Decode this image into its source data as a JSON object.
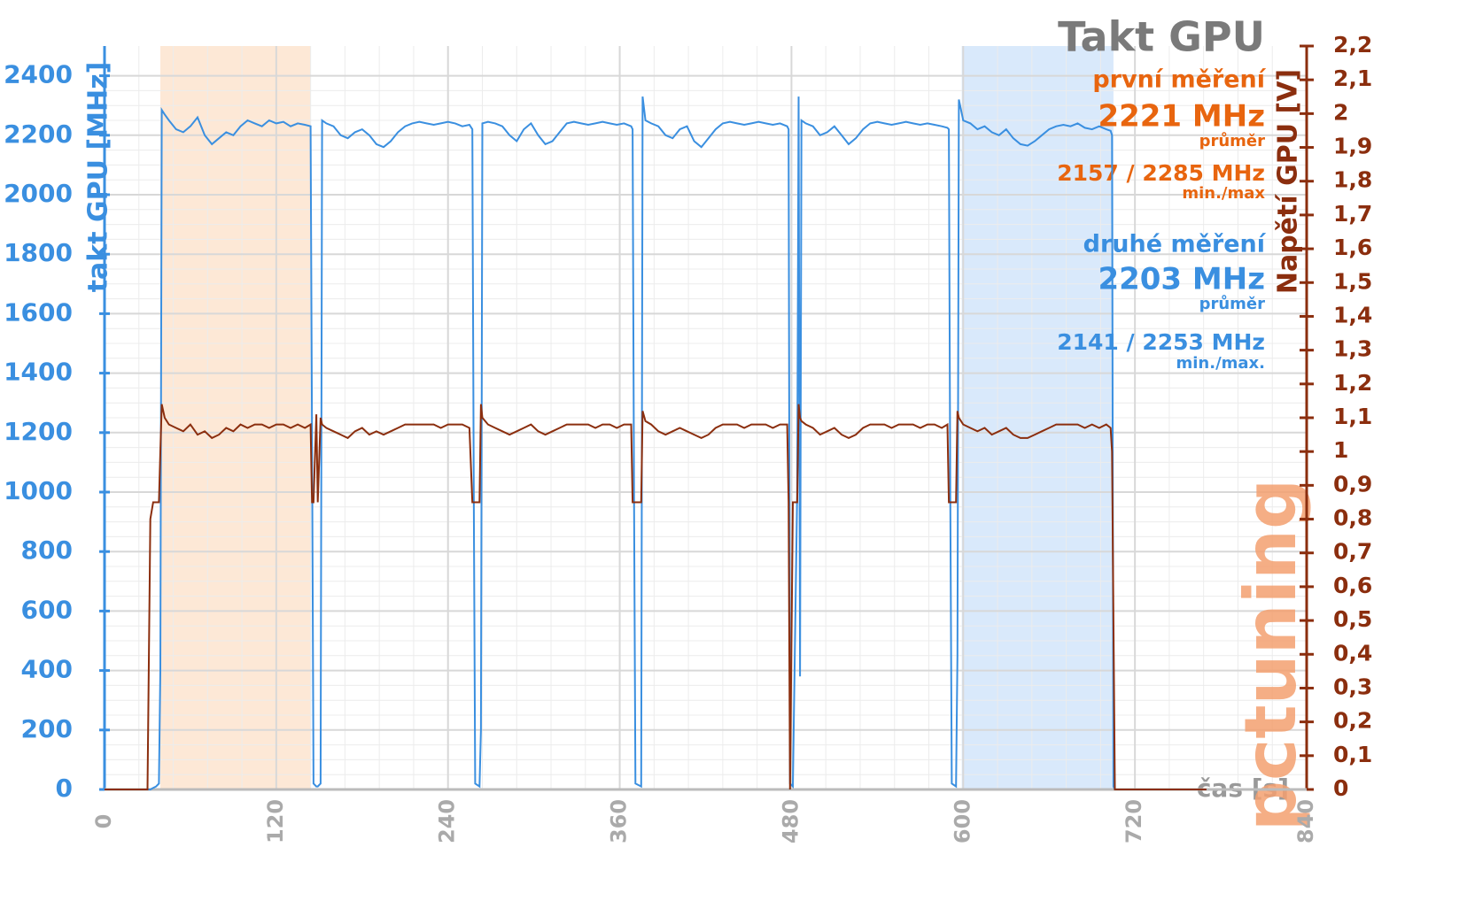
{
  "chart_data": {
    "type": "line",
    "title": "Takt GPU",
    "annotations": [
      "první měření",
      "2221 MHz",
      "průměr",
      "2157 / 2285 MHz",
      "min./max",
      "druhé měření",
      "2203 MHz",
      "průměr",
      "2141 / 2253 MHz",
      "min./max."
    ],
    "x_label": "čas [s]",
    "y_label": "takt GPU [MHz]",
    "y2_label": "Napětí GPU [V]",
    "logo": "pctuning",
    "xlim": [
      0,
      840
    ],
    "xticks": [
      0,
      120,
      240,
      360,
      480,
      600,
      720,
      840
    ],
    "ylim": [
      0,
      2500
    ],
    "yticks": [
      0,
      200,
      400,
      600,
      800,
      1000,
      1200,
      1400,
      1600,
      1800,
      2000,
      2200,
      2400
    ],
    "y2lim": [
      0,
      2.2
    ],
    "y2ticks": [
      0,
      {
        "value": 0.1,
        "label": "0,1"
      },
      {
        "value": 0.2,
        "label": "0,2"
      },
      {
        "value": 0.3,
        "label": "0,3"
      },
      {
        "value": 0.4,
        "label": "0,4"
      },
      {
        "value": 0.5,
        "label": "0,5"
      },
      {
        "value": 0.6,
        "label": "0,6"
      },
      {
        "value": 0.7,
        "label": "0,7"
      },
      {
        "value": 0.8,
        "label": "0,8"
      },
      {
        "value": 0.9,
        "label": "0,9"
      },
      1,
      {
        "value": 1.1,
        "label": "1,1"
      },
      {
        "value": 1.2,
        "label": "1,2"
      },
      {
        "value": 1.3,
        "label": "1,3"
      },
      {
        "value": 1.4,
        "label": "1,4"
      },
      {
        "value": 1.5,
        "label": "1,5"
      },
      {
        "value": 1.6,
        "label": "1,6"
      },
      {
        "value": 1.7,
        "label": "1,7"
      },
      {
        "value": 1.8,
        "label": "1,8"
      },
      {
        "value": 1.9,
        "label": "1,9"
      },
      2,
      {
        "value": 2.1,
        "label": "2,1"
      },
      {
        "value": 2.2,
        "label": "2,2"
      }
    ],
    "grid": true,
    "shaded_regions": [
      {
        "xlim": [
          39,
          144
        ],
        "color": "#fde8d6"
      },
      {
        "xlim": [
          599,
          705
        ],
        "color": "#d9e9fb"
      }
    ],
    "x": [
      0,
      30,
      32,
      34,
      36,
      38,
      39,
      40,
      42,
      45,
      50,
      55,
      60,
      65,
      70,
      75,
      80,
      85,
      90,
      95,
      100,
      105,
      110,
      115,
      120,
      125,
      130,
      135,
      140,
      144,
      145,
      146,
      148,
      149,
      151,
      152,
      155,
      160,
      165,
      170,
      175,
      180,
      185,
      190,
      195,
      200,
      205,
      210,
      215,
      220,
      225,
      230,
      235,
      240,
      245,
      250,
      255,
      257,
      258,
      259,
      262,
      263,
      264,
      268,
      273,
      278,
      283,
      288,
      293,
      298,
      303,
      308,
      313,
      318,
      323,
      328,
      333,
      338,
      343,
      348,
      353,
      358,
      363,
      368,
      369,
      370,
      371,
      375,
      376,
      378,
      382,
      387,
      392,
      397,
      402,
      407,
      412,
      417,
      422,
      427,
      432,
      437,
      442,
      447,
      452,
      457,
      462,
      467,
      472,
      477,
      478,
      479,
      481,
      484,
      485,
      486,
      487,
      490,
      495,
      500,
      505,
      510,
      515,
      520,
      525,
      530,
      535,
      540,
      545,
      550,
      555,
      560,
      565,
      570,
      575,
      580,
      585,
      589,
      590,
      591,
      592,
      595,
      596,
      597,
      600,
      605,
      610,
      615,
      620,
      625,
      630,
      635,
      640,
      645,
      650,
      655,
      660,
      665,
      670,
      675,
      680,
      685,
      690,
      695,
      700,
      703,
      704,
      705,
      706,
      720,
      750,
      770
    ],
    "series": [
      {
        "name": "takt GPU",
        "color": "#3a8fe0",
        "values": [
          0,
          0,
          0,
          5,
          10,
          20,
          400,
          2285,
          2270,
          2250,
          2220,
          2210,
          2230,
          2260,
          2200,
          2170,
          2190,
          2210,
          2200,
          2230,
          2250,
          2240,
          2230,
          2250,
          2240,
          2245,
          2230,
          2240,
          2235,
          2230,
          1200,
          20,
          10,
          10,
          20,
          2250,
          2240,
          2230,
          2200,
          2190,
          2210,
          2220,
          2200,
          2170,
          2160,
          2180,
          2210,
          2230,
          2240,
          2245,
          2240,
          2235,
          2240,
          2245,
          2240,
          2230,
          2235,
          2220,
          1000,
          20,
          10,
          200,
          2240,
          2245,
          2240,
          2230,
          2200,
          2180,
          2220,
          2240,
          2200,
          2170,
          2180,
          2210,
          2240,
          2245,
          2240,
          2235,
          2240,
          2245,
          2240,
          2235,
          2240,
          2230,
          2220,
          1000,
          20,
          10,
          2330,
          2250,
          2240,
          2230,
          2200,
          2190,
          2220,
          2230,
          2180,
          2160,
          2190,
          2220,
          2240,
          2245,
          2240,
          2235,
          2240,
          2245,
          2240,
          2235,
          2240,
          2230,
          2220,
          20,
          10,
          1000,
          2330,
          380,
          2250,
          2240,
          2230,
          2200,
          2210,
          2230,
          2200,
          2170,
          2190,
          2220,
          2240,
          2245,
          2240,
          2235,
          2240,
          2245,
          2240,
          2235,
          2240,
          2235,
          2230,
          2225,
          2220,
          1000,
          20,
          10,
          450,
          2320,
          2250,
          2240,
          2220,
          2230,
          2210,
          2200,
          2220,
          2190,
          2170,
          2165,
          2180,
          2200,
          2220,
          2230,
          2235,
          2230,
          2240,
          2225,
          2220,
          2230,
          2220,
          2215,
          2200,
          10,
          0,
          0,
          0,
          0
        ]
      },
      {
        "name": "Napětí GPU",
        "color": "#8b2e0e",
        "axis": "y2",
        "values": [
          0,
          0,
          0.8,
          0.85,
          0.85,
          0.85,
          1.0,
          1.14,
          1.1,
          1.08,
          1.07,
          1.06,
          1.08,
          1.05,
          1.06,
          1.04,
          1.05,
          1.07,
          1.06,
          1.08,
          1.07,
          1.08,
          1.08,
          1.07,
          1.08,
          1.08,
          1.07,
          1.08,
          1.07,
          1.08,
          0.85,
          0.85,
          1.11,
          0.85,
          1.1,
          1.08,
          1.07,
          1.06,
          1.05,
          1.04,
          1.06,
          1.07,
          1.05,
          1.06,
          1.05,
          1.06,
          1.07,
          1.08,
          1.08,
          1.08,
          1.08,
          1.08,
          1.07,
          1.08,
          1.08,
          1.08,
          1.07,
          0.85,
          0.85,
          0.85,
          0.85,
          1.14,
          1.1,
          1.08,
          1.07,
          1.06,
          1.05,
          1.06,
          1.07,
          1.08,
          1.06,
          1.05,
          1.06,
          1.07,
          1.08,
          1.08,
          1.08,
          1.08,
          1.07,
          1.08,
          1.08,
          1.07,
          1.08,
          1.08,
          0.85,
          0.85,
          0.85,
          0.85,
          1.12,
          1.09,
          1.08,
          1.06,
          1.05,
          1.06,
          1.07,
          1.06,
          1.05,
          1.04,
          1.05,
          1.07,
          1.08,
          1.08,
          1.08,
          1.07,
          1.08,
          1.08,
          1.08,
          1.07,
          1.08,
          1.08,
          0.85,
          0,
          0.85,
          0.85,
          1.14,
          1.1,
          1.09,
          1.08,
          1.07,
          1.05,
          1.06,
          1.07,
          1.05,
          1.04,
          1.05,
          1.07,
          1.08,
          1.08,
          1.08,
          1.07,
          1.08,
          1.08,
          1.08,
          1.07,
          1.08,
          1.08,
          1.07,
          1.08,
          0.85,
          0.85,
          0.85,
          0.85,
          1.12,
          1.1,
          1.08,
          1.07,
          1.06,
          1.07,
          1.05,
          1.06,
          1.07,
          1.05,
          1.04,
          1.04,
          1.05,
          1.06,
          1.07,
          1.08,
          1.08,
          1.08,
          1.08,
          1.07,
          1.08,
          1.07,
          1.08,
          1.07,
          1.0,
          0.5,
          0,
          0,
          0,
          0
        ]
      }
    ]
  }
}
